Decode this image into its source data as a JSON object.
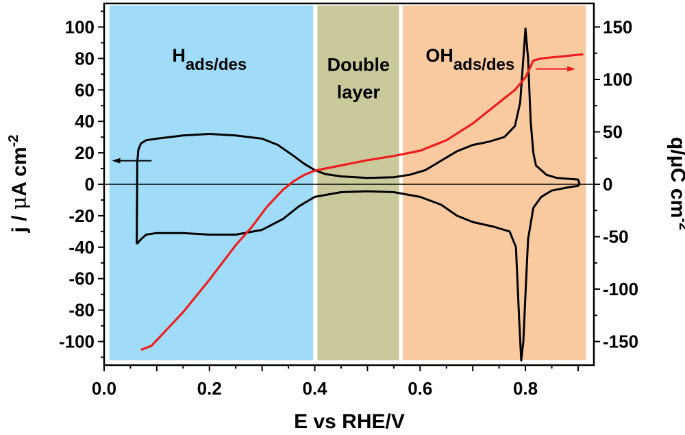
{
  "chart_data": {
    "type": "line",
    "xlabel": "E vs RHE/V",
    "ylabel_left": {
      "main": "j / ",
      "mu": "μ",
      "unit": "A cm",
      "sup": "-2"
    },
    "ylabel_right": {
      "main": "q/μC cm",
      "sup": "-2"
    },
    "xlim": [
      0,
      0.93
    ],
    "ylim_left": [
      -115,
      115
    ],
    "ylim_right": [
      -172.5,
      172.5
    ],
    "x_ticks": [
      0.0,
      0.2,
      0.4,
      0.6,
      0.8
    ],
    "x_tick_labels": [
      "0.0",
      "0.2",
      "0.4",
      "0.6",
      "0.8"
    ],
    "y_left_ticks": [
      -100,
      -80,
      -60,
      -40,
      -20,
      0,
      20,
      40,
      60,
      80,
      100
    ],
    "y_left_tick_labels": [
      "-100",
      "-80",
      "-60",
      "-40",
      "-20",
      "0",
      "20",
      "40",
      "60",
      "80",
      "100"
    ],
    "y_right_ticks": [
      -150,
      -100,
      -50,
      0,
      50,
      100,
      150
    ],
    "y_right_tick_labels": [
      "-150",
      "-100",
      "-50",
      "0",
      "50",
      "100",
      "150"
    ],
    "regions": [
      {
        "x0": 0.01,
        "x1": 0.397,
        "color": "#a0dcf8",
        "label_main": "H",
        "label_sub": "ads/des",
        "label_x": 0.2,
        "label_y": 78
      },
      {
        "x0": 0.405,
        "x1": 0.56,
        "color": "#cac99c",
        "label_lines": [
          "Double",
          "layer"
        ],
        "label_x": 0.483,
        "label_y": 72
      },
      {
        "x0": 0.567,
        "x1": 0.915,
        "color": "#f9caa0",
        "label_main": "OH",
        "label_sub": "ads/des",
        "label_x": 0.695,
        "label_y": 78
      }
    ],
    "colors": {
      "cv": "#000000",
      "charge": "#ee1c1c"
    },
    "cv_forward": [
      [
        0.062,
        -38
      ],
      [
        0.063,
        14
      ],
      [
        0.065,
        22
      ],
      [
        0.07,
        26
      ],
      [
        0.08,
        28
      ],
      [
        0.1,
        29
      ],
      [
        0.15,
        31
      ],
      [
        0.2,
        32
      ],
      [
        0.25,
        31
      ],
      [
        0.3,
        29
      ],
      [
        0.33,
        25
      ],
      [
        0.36,
        18
      ],
      [
        0.38,
        13
      ],
      [
        0.4,
        9
      ],
      [
        0.42,
        6.5
      ],
      [
        0.45,
        5
      ],
      [
        0.5,
        4
      ],
      [
        0.55,
        4.5
      ],
      [
        0.58,
        6
      ],
      [
        0.61,
        9
      ],
      [
        0.64,
        15
      ],
      [
        0.67,
        21
      ],
      [
        0.7,
        25
      ],
      [
        0.73,
        27
      ],
      [
        0.76,
        30
      ],
      [
        0.78,
        37
      ],
      [
        0.79,
        52
      ],
      [
        0.795,
        75
      ],
      [
        0.8,
        99
      ],
      [
        0.805,
        80
      ],
      [
        0.81,
        40
      ],
      [
        0.815,
        20
      ],
      [
        0.82,
        12
      ],
      [
        0.84,
        6
      ],
      [
        0.86,
        4
      ],
      [
        0.9,
        3
      ],
      [
        0.903,
        0
      ]
    ],
    "cv_reverse": [
      [
        0.903,
        0
      ],
      [
        0.9,
        -1
      ],
      [
        0.88,
        -2
      ],
      [
        0.85,
        -4
      ],
      [
        0.83,
        -8
      ],
      [
        0.815,
        -15
      ],
      [
        0.805,
        -35
      ],
      [
        0.8,
        -70
      ],
      [
        0.796,
        -100
      ],
      [
        0.792,
        -112
      ],
      [
        0.788,
        -85
      ],
      [
        0.782,
        -40
      ],
      [
        0.77,
        -30
      ],
      [
        0.74,
        -27
      ],
      [
        0.7,
        -24
      ],
      [
        0.67,
        -20
      ],
      [
        0.64,
        -13
      ],
      [
        0.6,
        -8
      ],
      [
        0.55,
        -5
      ],
      [
        0.5,
        -4.5
      ],
      [
        0.45,
        -5
      ],
      [
        0.4,
        -8
      ],
      [
        0.37,
        -14
      ],
      [
        0.34,
        -22
      ],
      [
        0.3,
        -29
      ],
      [
        0.25,
        -32
      ],
      [
        0.2,
        -32
      ],
      [
        0.15,
        -31
      ],
      [
        0.1,
        -31
      ],
      [
        0.08,
        -32
      ],
      [
        0.07,
        -35
      ],
      [
        0.062,
        -38
      ]
    ],
    "charge_curve": [
      [
        0.07,
        -158
      ],
      [
        0.08,
        -156
      ],
      [
        0.09,
        -154
      ],
      [
        0.12,
        -138
      ],
      [
        0.15,
        -122
      ],
      [
        0.2,
        -91
      ],
      [
        0.25,
        -58
      ],
      [
        0.28,
        -41
      ],
      [
        0.31,
        -21
      ],
      [
        0.34,
        -5
      ],
      [
        0.36,
        3
      ],
      [
        0.38,
        9
      ],
      [
        0.4,
        13
      ],
      [
        0.45,
        18
      ],
      [
        0.5,
        23
      ],
      [
        0.55,
        27
      ],
      [
        0.6,
        32
      ],
      [
        0.65,
        42
      ],
      [
        0.7,
        58
      ],
      [
        0.74,
        74
      ],
      [
        0.78,
        90
      ],
      [
        0.8,
        102
      ],
      [
        0.815,
        118
      ],
      [
        0.83,
        120
      ],
      [
        0.87,
        122
      ],
      [
        0.91,
        124
      ]
    ],
    "arrows": [
      {
        "axis": "left",
        "x_start": 0.09,
        "x_end": 0.015,
        "y": 15
      },
      {
        "axis": "right",
        "x_start": 0.82,
        "x_end": 0.895,
        "y": 110
      }
    ]
  }
}
